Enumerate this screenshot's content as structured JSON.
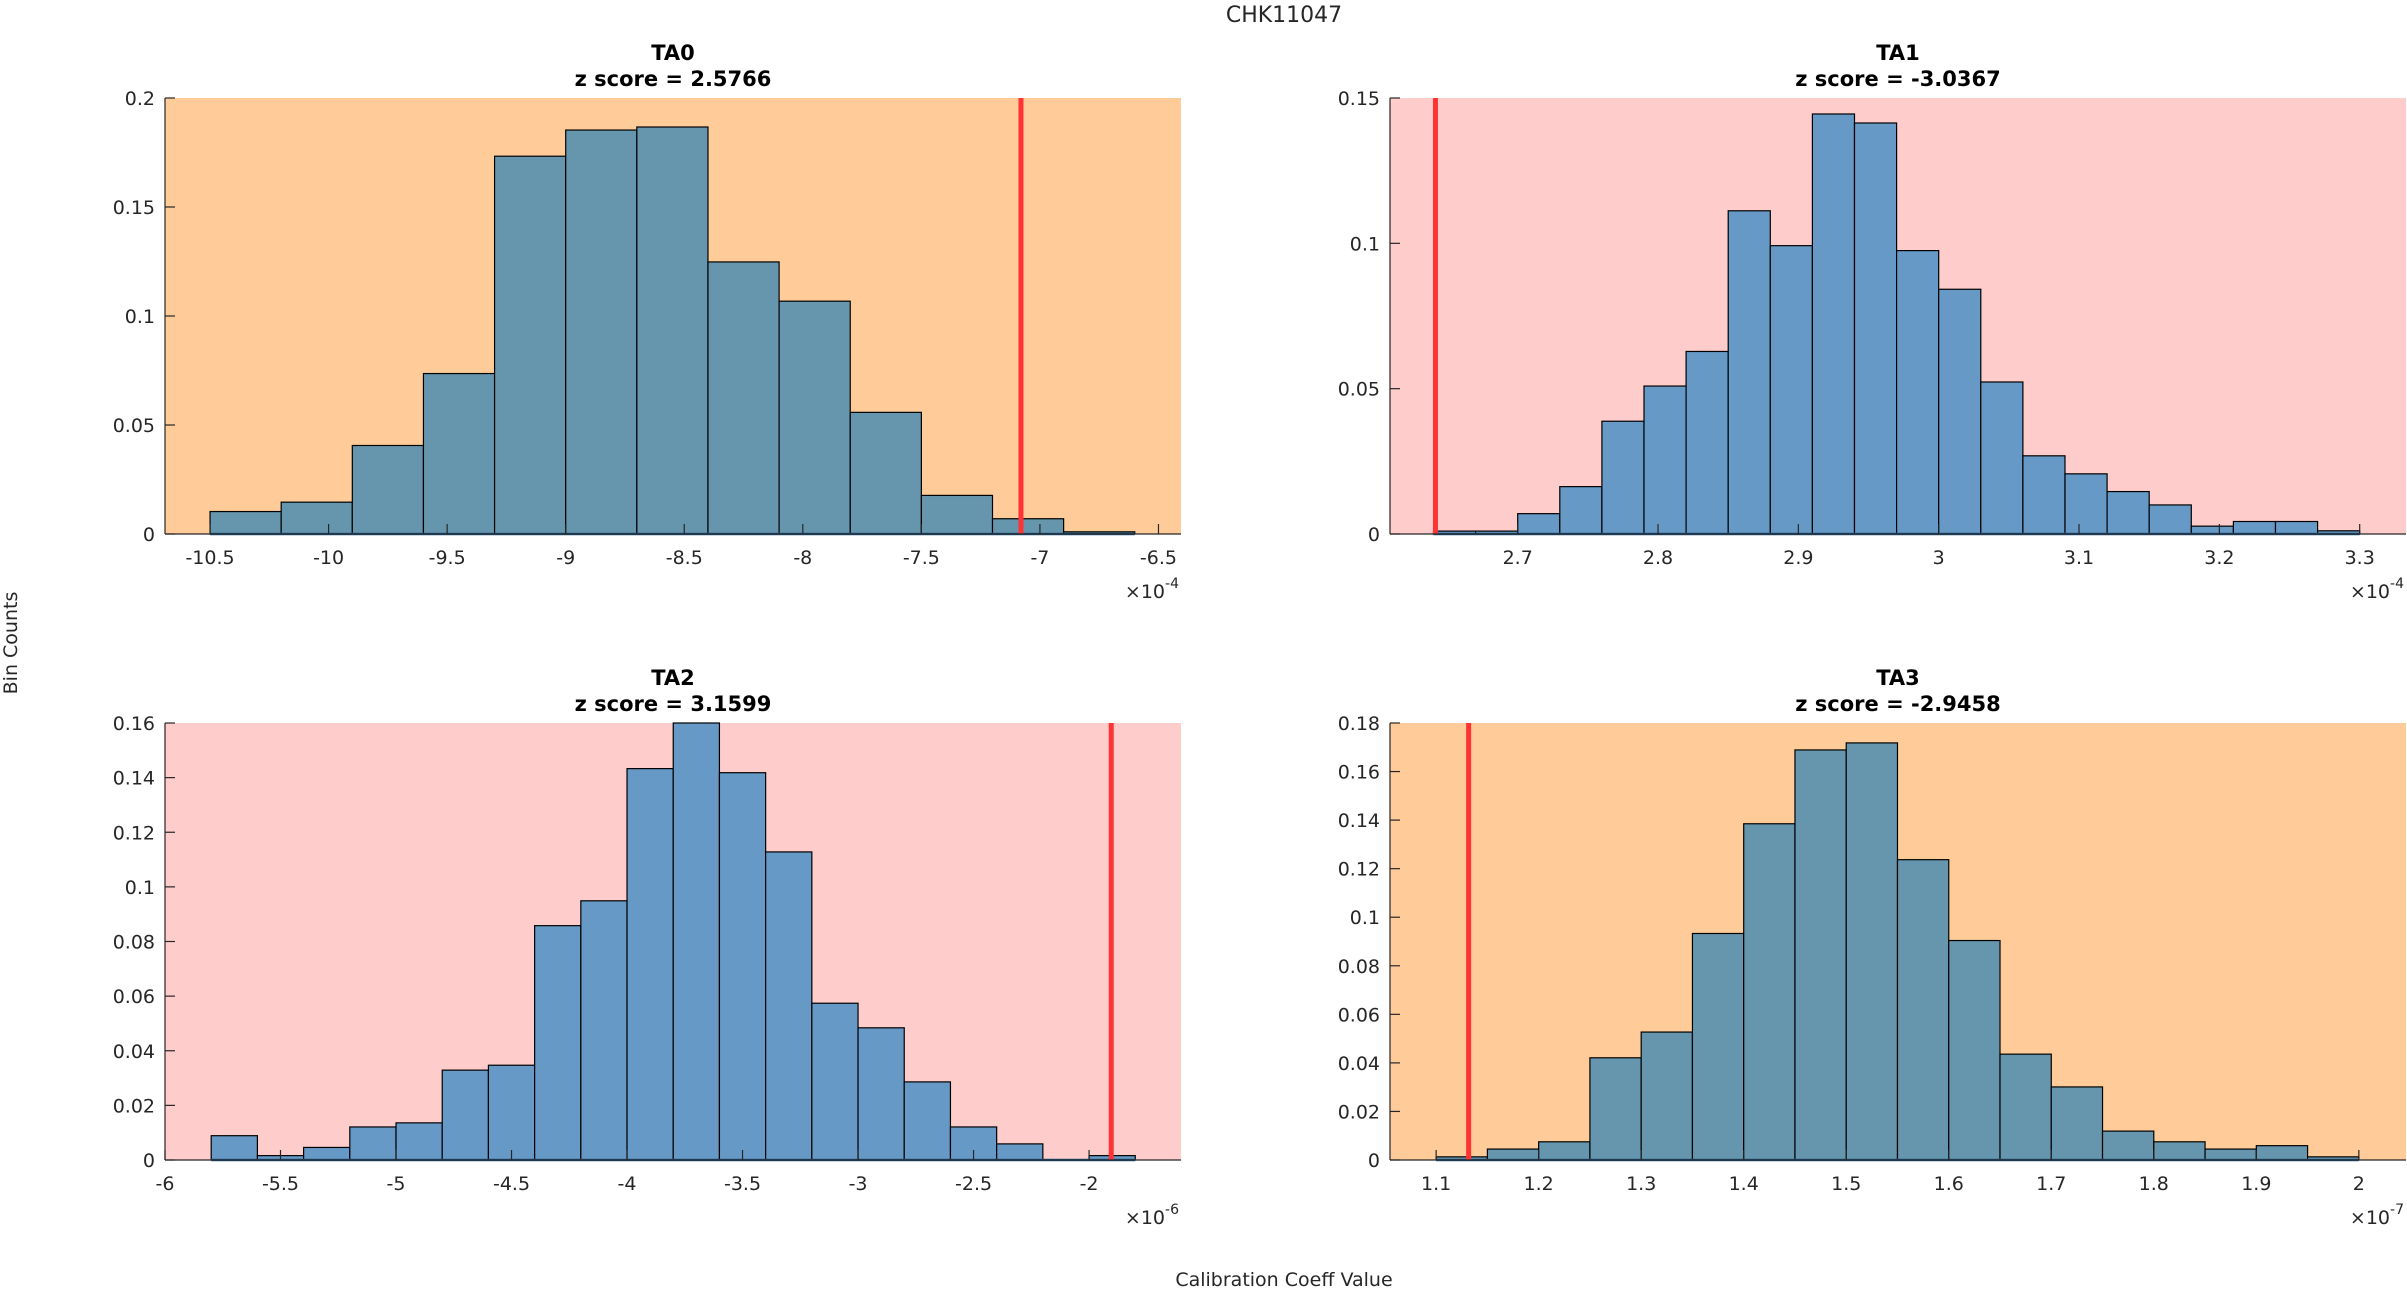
{
  "figure": {
    "title": "CHK11047",
    "ylabel": "Bin Counts",
    "xlabel": "Calibration Coeff Value"
  },
  "colors": {
    "bg_orange": "#ffcc99",
    "bg_pink": "#ffcccc",
    "bar_on_orange": "#6696ae",
    "bar_on_pink": "#6699c6",
    "reference_line": "#ff3333"
  },
  "chart_data": [
    {
      "type": "bar",
      "name": "TA0",
      "title": "TA0",
      "subtitle": "z score = 2.5766",
      "background": "orange",
      "exponent_label": "-4",
      "xlim": [
        -10.69,
        -6.405
      ],
      "ylim": [
        0,
        0.2
      ],
      "xticks": [
        -10.5,
        -10,
        -9.5,
        -9,
        -8.5,
        -8,
        -7.5,
        -7,
        -6.5
      ],
      "xtick_labels": [
        "-10.5",
        "-10",
        "-9.5",
        "-9",
        "-8.5",
        "-8",
        "-7.5",
        "-7",
        "-6.5"
      ],
      "yticks": [
        0,
        0.05,
        0.1,
        0.15,
        0.2
      ],
      "ytick_labels": [
        "0",
        "0.05",
        "0.1",
        "0.15",
        "0.2"
      ],
      "bin_edges": [
        -10.5,
        -10.2,
        -9.9,
        -9.6,
        -9.3,
        -9.0,
        -8.7,
        -8.4,
        -8.1,
        -7.8,
        -7.5,
        -7.2,
        -6.9,
        -6.6
      ],
      "values": [
        0.0103,
        0.0146,
        0.0406,
        0.0736,
        0.1733,
        0.1853,
        0.1867,
        0.1248,
        0.1068,
        0.0558,
        0.0177,
        0.007,
        0.001
      ],
      "reference_value": -7.08
    },
    {
      "type": "bar",
      "name": "TA1",
      "title": "TA1",
      "subtitle": "z score = -3.0367",
      "background": "pink",
      "exponent_label": "-4",
      "xlim": [
        2.609,
        3.333
      ],
      "ylim": [
        0,
        0.15
      ],
      "xticks": [
        2.7,
        2.8,
        2.9,
        3.0,
        3.1,
        3.2,
        3.3
      ],
      "xtick_labels": [
        "2.7",
        "2.8",
        "2.9",
        "3",
        "3.1",
        "3.2",
        "3.3"
      ],
      "yticks": [
        0,
        0.05,
        0.1,
        0.15
      ],
      "ytick_labels": [
        "0",
        "0.05",
        "0.1",
        "0.15"
      ],
      "bin_edges": [
        2.64,
        2.67,
        2.7,
        2.73,
        2.76,
        2.79,
        2.82,
        2.85,
        2.88,
        2.91,
        2.94,
        2.97,
        3.0,
        3.03,
        3.06,
        3.09,
        3.12,
        3.15,
        3.18,
        3.21,
        3.24,
        3.27,
        3.3
      ],
      "values": [
        0.001,
        0.001,
        0.007,
        0.0163,
        0.0388,
        0.0509,
        0.0628,
        0.1112,
        0.0992,
        0.1445,
        0.1414,
        0.0975,
        0.0842,
        0.0523,
        0.0269,
        0.0207,
        0.0146,
        0.01,
        0.0027,
        0.0043,
        0.0043,
        0.0011
      ],
      "reference_value": 2.6414
    },
    {
      "type": "bar",
      "name": "TA2",
      "title": "TA2",
      "subtitle": "z score = 3.1599",
      "background": "pink",
      "exponent_label": "-6",
      "xlim": [
        -6.0,
        -1.602
      ],
      "ylim": [
        0,
        0.16
      ],
      "xticks": [
        -6,
        -5.5,
        -5,
        -4.5,
        -4,
        -3.5,
        -3,
        -2.5,
        -2
      ],
      "xtick_labels": [
        "-6",
        "-5.5",
        "-5",
        "-4.5",
        "-4",
        "-3.5",
        "-3",
        "-2.5",
        "-2"
      ],
      "yticks": [
        0,
        0.02,
        0.04,
        0.06,
        0.08,
        0.1,
        0.12,
        0.14,
        0.16
      ],
      "ytick_labels": [
        "0",
        "0.02",
        "0.04",
        "0.06",
        "0.08",
        "0.1",
        "0.12",
        "0.14",
        "0.16"
      ],
      "bin_edges": [
        -5.8,
        -5.6,
        -5.4,
        -5.2,
        -5.0,
        -4.8,
        -4.6,
        -4.4,
        -4.2,
        -4.0,
        -3.8,
        -3.6,
        -3.4,
        -3.2,
        -3.0,
        -2.8,
        -2.6,
        -2.4,
        -2.2,
        -2.0,
        -1.8
      ],
      "values": [
        0.0089,
        0.0016,
        0.0046,
        0.0121,
        0.0136,
        0.0329,
        0.0347,
        0.0858,
        0.0949,
        0.1433,
        0.16,
        0.1418,
        0.1128,
        0.0574,
        0.0484,
        0.0286,
        0.0121,
        0.0059,
        0.0,
        0.0016
      ],
      "reference_value": -1.904
    },
    {
      "type": "bar",
      "name": "TA3",
      "title": "TA3",
      "subtitle": "z score = -2.9458",
      "background": "orange",
      "exponent_label": "-7",
      "xlim": [
        1.055,
        2.046
      ],
      "ylim": [
        0,
        0.18
      ],
      "xticks": [
        1.1,
        1.2,
        1.3,
        1.4,
        1.5,
        1.6,
        1.7,
        1.8,
        1.9,
        2.0
      ],
      "xtick_labels": [
        "1.1",
        "1.2",
        "1.3",
        "1.4",
        "1.5",
        "1.6",
        "1.7",
        "1.8",
        "1.9",
        "2"
      ],
      "yticks": [
        0,
        0.02,
        0.04,
        0.06,
        0.08,
        0.1,
        0.12,
        0.14,
        0.16,
        0.18
      ],
      "ytick_labels": [
        "0",
        "0.02",
        "0.04",
        "0.06",
        "0.08",
        "0.1",
        "0.12",
        "0.14",
        "0.16",
        "0.18"
      ],
      "bin_edges": [
        1.1,
        1.15,
        1.2,
        1.25,
        1.3,
        1.35,
        1.4,
        1.45,
        1.5,
        1.55,
        1.6,
        1.65,
        1.7,
        1.75,
        1.8,
        1.85,
        1.9,
        1.95,
        2.0
      ],
      "values": [
        0.0013,
        0.0045,
        0.0075,
        0.0421,
        0.0527,
        0.0933,
        0.1385,
        0.1689,
        0.1718,
        0.1237,
        0.0904,
        0.0436,
        0.0301,
        0.0119,
        0.0075,
        0.0045,
        0.0059,
        0.0013
      ],
      "reference_value": 1.1317
    }
  ]
}
